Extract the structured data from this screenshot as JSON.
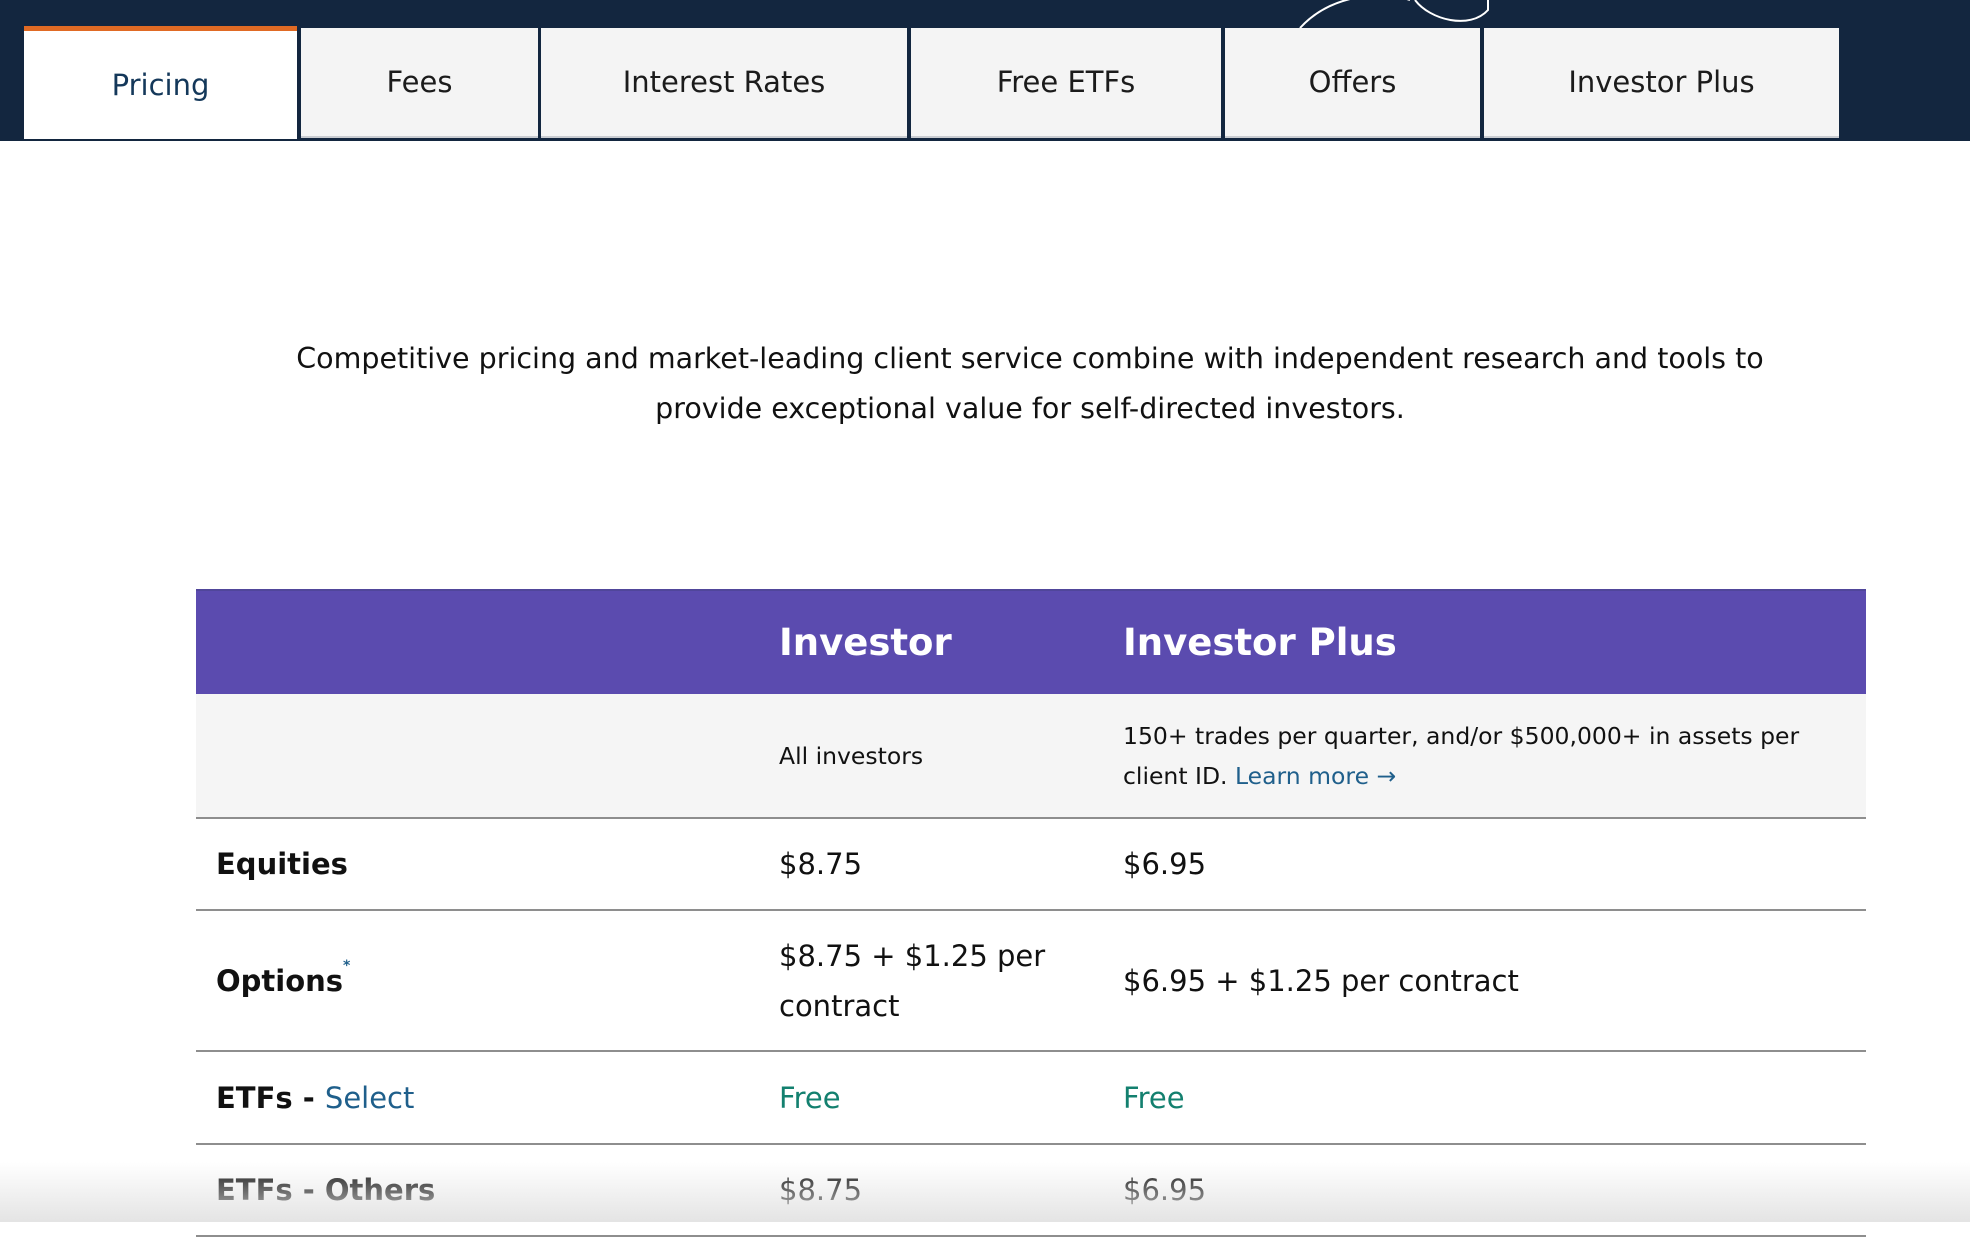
{
  "tabs": [
    "Pricing",
    "Fees",
    "Interest Rates",
    "Free ETFs",
    "Offers",
    "Investor Plus"
  ],
  "intro": "Competitive pricing and market-leading client service combine with independent research and tools to provide exceptional value for self-directed investors.",
  "table": {
    "columns": [
      "Investor",
      "Investor Plus"
    ],
    "subheader": {
      "investor": "All investors",
      "investor_plus": "150+ trades per quarter, and/or $500,000+ in assets per client ID.",
      "link": "Learn more →"
    },
    "rows": [
      {
        "label": "Equities",
        "investor": "$8.75",
        "investor_plus": "$6.95"
      },
      {
        "label": "Options",
        "note": "*",
        "investor": "$8.75 + $1.25 per contract",
        "investor_plus": "$6.95 + $1.25 per contract"
      },
      {
        "label": "ETFs - ",
        "link": "Select",
        "investor": "Free",
        "investor_plus": "Free"
      },
      {
        "label": "ETFs - Others",
        "investor": "$8.75",
        "investor_plus": "$6.95"
      }
    ]
  }
}
